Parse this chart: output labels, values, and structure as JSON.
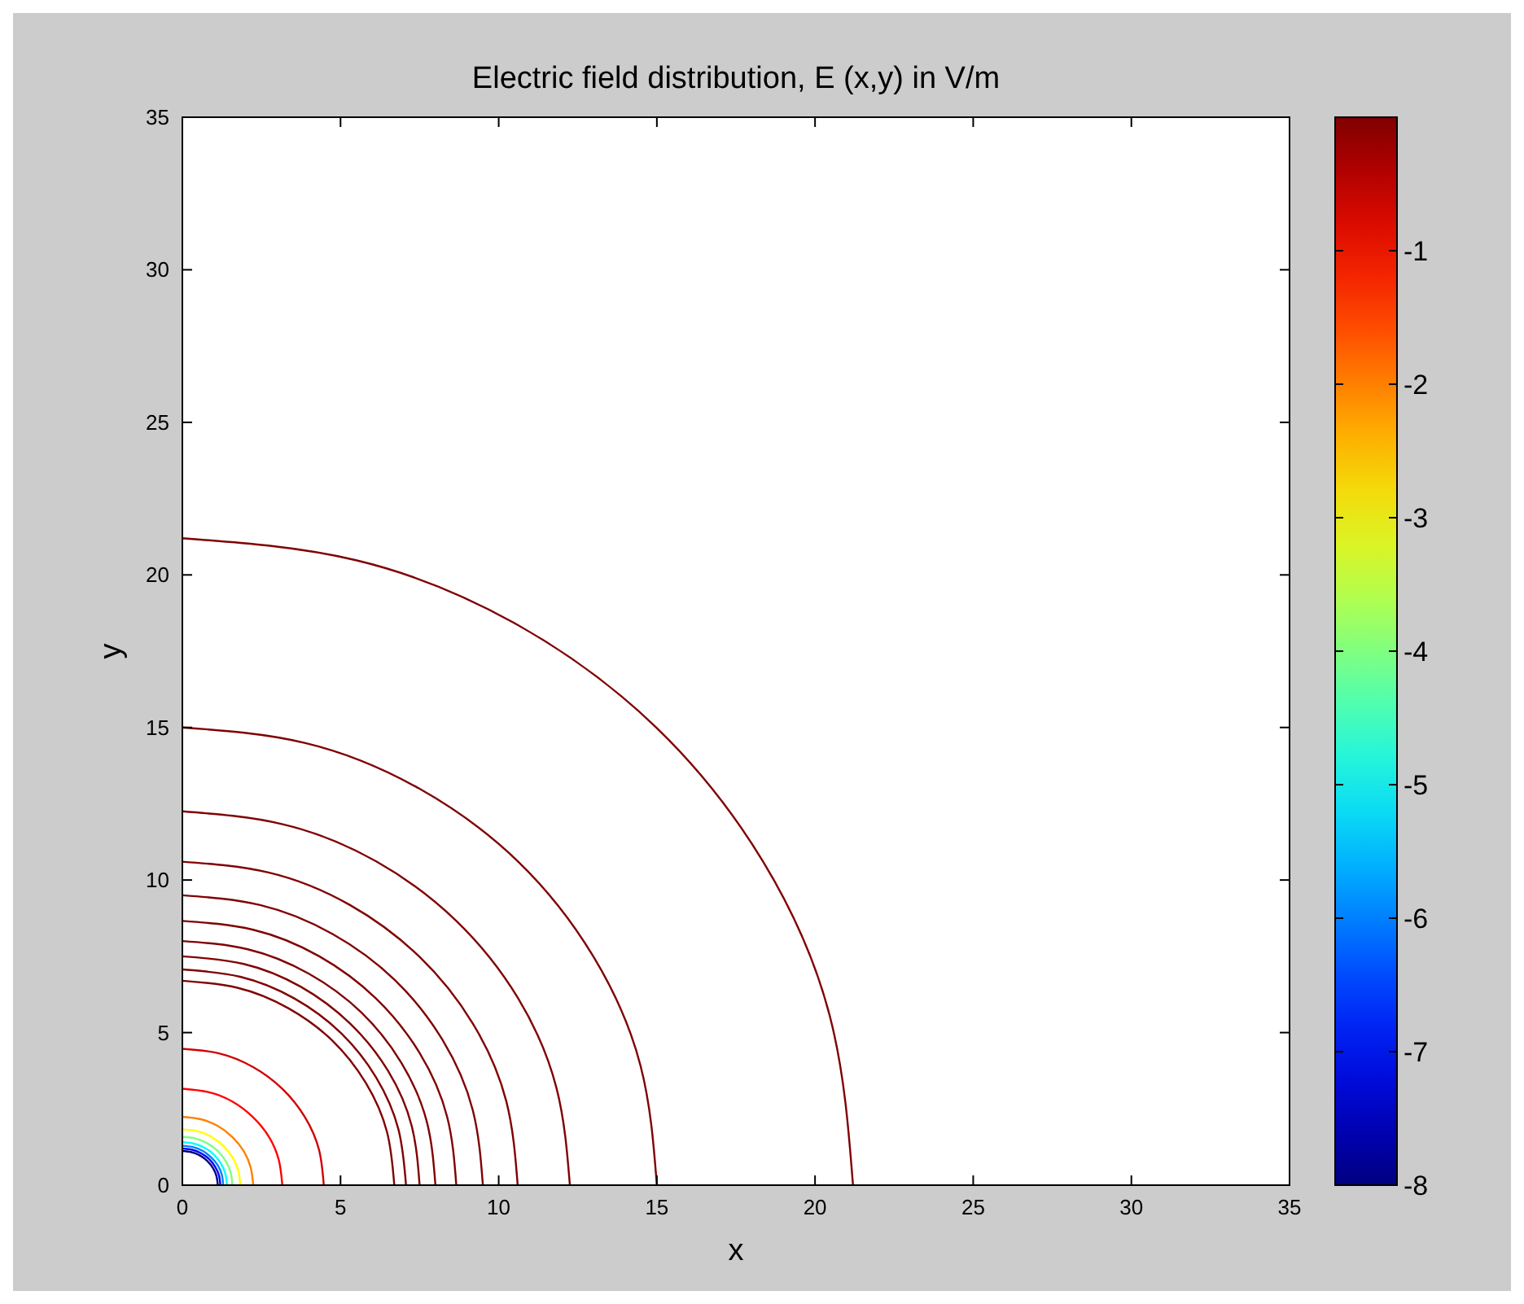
{
  "chart_data": {
    "type": "line",
    "title": "Electric field distribution, E (x,y) in V/m",
    "xlabel": "x",
    "ylabel": "y",
    "xlim": [
      0,
      35
    ],
    "ylim": [
      0,
      35
    ],
    "xticks": [
      0,
      5,
      10,
      15,
      20,
      25,
      30,
      35
    ],
    "yticks": [
      0,
      5,
      10,
      15,
      20,
      25,
      30,
      35
    ],
    "clim": [
      -8,
      0
    ],
    "cticks": [
      -1,
      -2,
      -3,
      -4,
      -5,
      -6,
      -7,
      -8
    ],
    "series": [
      {
        "color": "#800000",
        "x": [
          21.2,
          20.48,
          18.36,
          14.99,
          10.6,
          5.49,
          0
        ],
        "values": [
          0,
          5.49,
          10.6,
          14.99,
          18.36,
          20.48,
          21.2
        ]
      },
      {
        "color": "#800000",
        "x": [
          15,
          14.49,
          12.99,
          10.61,
          7.5,
          3.89,
          0
        ],
        "values": [
          0,
          3.89,
          7.5,
          10.61,
          12.99,
          14.49,
          15
        ]
      },
      {
        "color": "#800000",
        "x": [
          12.25,
          11.83,
          10.61,
          8.66,
          6.13,
          3.17,
          0
        ],
        "values": [
          0,
          3.17,
          6.13,
          8.66,
          10.61,
          11.83,
          12.25
        ]
      },
      {
        "color": "#800000",
        "x": [
          10.6,
          10.24,
          9.18,
          7.49,
          5.3,
          2.75,
          0
        ],
        "values": [
          0,
          2.75,
          5.3,
          7.49,
          9.18,
          10.24,
          10.6
        ]
      },
      {
        "color": "#800000",
        "x": [
          9.5,
          9.18,
          8.23,
          6.72,
          4.75,
          2.46,
          0
        ],
        "values": [
          0,
          2.46,
          4.75,
          6.72,
          8.23,
          9.18,
          9.5
        ]
      },
      {
        "color": "#800000",
        "x": [
          8.66,
          8.37,
          7.5,
          6.12,
          4.33,
          2.24,
          0
        ],
        "values": [
          0,
          2.24,
          4.33,
          6.12,
          7.5,
          8.37,
          8.66
        ]
      },
      {
        "color": "#800000",
        "x": [
          8,
          7.73,
          6.93,
          5.66,
          4,
          2.07,
          0
        ],
        "values": [
          0,
          2.07,
          4,
          5.66,
          6.93,
          7.73,
          8
        ]
      },
      {
        "color": "#800000",
        "x": [
          7.5,
          7.25,
          6.5,
          5.3,
          3.75,
          1.94,
          0
        ],
        "values": [
          0,
          1.94,
          3.75,
          5.3,
          6.5,
          7.25,
          7.5
        ]
      },
      {
        "color": "#800000",
        "x": [
          7.07,
          6.83,
          6.12,
          5,
          3.54,
          1.83,
          0
        ],
        "values": [
          0,
          1.83,
          3.54,
          5,
          6.12,
          6.83,
          7.07
        ]
      },
      {
        "color": "#800000",
        "x": [
          6.7,
          6.47,
          5.8,
          4.74,
          3.35,
          1.74,
          0
        ],
        "values": [
          0,
          1.74,
          3.35,
          4.74,
          5.8,
          6.47,
          6.7
        ]
      },
      {
        "color": "#d00000",
        "x": [
          4.47,
          4.32,
          3.87,
          3.16,
          2.24,
          1.16,
          0
        ],
        "values": [
          0,
          1.16,
          2.24,
          3.16,
          3.87,
          4.32,
          4.47
        ]
      },
      {
        "color": "#ff0000",
        "x": [
          3.16,
          3.05,
          2.74,
          2.23,
          1.58,
          0.82,
          0
        ],
        "values": [
          0,
          0.82,
          1.58,
          2.23,
          2.74,
          3.05,
          3.16
        ]
      },
      {
        "color": "#ff8000",
        "x": [
          2.24,
          2.16,
          1.94,
          1.58,
          1.12,
          0.58,
          0
        ],
        "values": [
          0,
          0.58,
          1.12,
          1.58,
          1.94,
          2.16,
          2.24
        ]
      },
      {
        "color": "#ffff00",
        "x": [
          1.83,
          1.77,
          1.58,
          1.29,
          0.92,
          0.47,
          0
        ],
        "values": [
          0,
          0.47,
          0.92,
          1.29,
          1.58,
          1.77,
          1.83
        ]
      },
      {
        "color": "#80ff80",
        "x": [
          1.58,
          1.53,
          1.37,
          1.12,
          0.79,
          0.41,
          0
        ],
        "values": [
          0,
          0.41,
          0.79,
          1.12,
          1.37,
          1.53,
          1.58
        ]
      },
      {
        "color": "#00ffff",
        "x": [
          1.41,
          1.36,
          1.22,
          1,
          0.71,
          0.37,
          0
        ],
        "values": [
          0,
          0.37,
          0.71,
          1,
          1.22,
          1.36,
          1.41
        ]
      },
      {
        "color": "#0080ff",
        "x": [
          1.29,
          1.25,
          1.12,
          0.91,
          0.65,
          0.33,
          0
        ],
        "values": [
          0,
          0.33,
          0.65,
          0.91,
          1.12,
          1.25,
          1.29
        ]
      },
      {
        "color": "#0000ff",
        "x": [
          1.2,
          1.16,
          1.04,
          0.85,
          0.6,
          0.31,
          0
        ],
        "values": [
          0,
          0.31,
          0.6,
          0.85,
          1.04,
          1.16,
          1.2
        ]
      },
      {
        "color": "#000080",
        "x": [
          1.12,
          1.08,
          0.97,
          0.79,
          0.56,
          0.29,
          0
        ],
        "values": [
          0,
          0.29,
          0.56,
          0.79,
          0.97,
          1.08,
          1.12
        ]
      }
    ]
  }
}
